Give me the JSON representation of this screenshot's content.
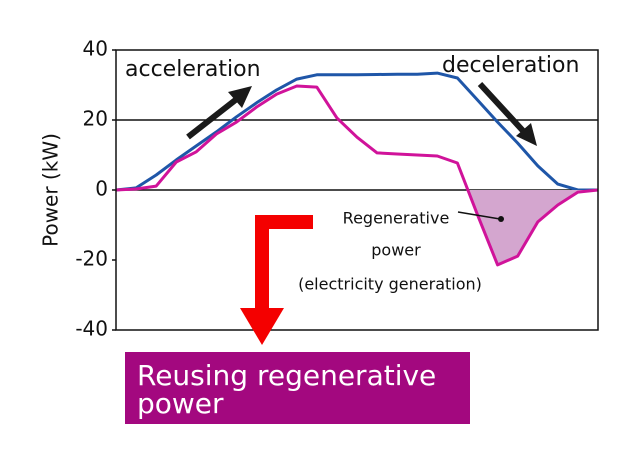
{
  "chart_data": {
    "type": "line",
    "y_label": "Power (kW)",
    "ylim": [
      -40,
      40
    ],
    "yticks": [
      -40,
      -20,
      0,
      20,
      40
    ],
    "series": [
      {
        "color": "#1f56a8",
        "values": [
          0,
          0.6,
          4.3,
          8.6,
          12.6,
          16.6,
          20.9,
          24.9,
          28.6,
          31.7,
          32.9,
          32.9,
          32.9,
          33,
          33.1,
          33.1,
          33.4,
          32,
          25.7,
          19.4,
          13.4,
          6.9,
          1.7,
          0,
          0
        ]
      },
      {
        "color": "#d0139a",
        "fill": "#d4a6cf",
        "values": [
          0,
          0.3,
          1.1,
          8,
          10.9,
          16,
          19.4,
          23.7,
          27.4,
          29.7,
          29.4,
          20.6,
          15.1,
          10.6,
          10.3,
          10,
          9.7,
          7.7,
          -7.1,
          -21.4,
          -18.9,
          -9.1,
          -4.3,
          -0.6,
          0
        ]
      }
    ],
    "annotations": [
      "acceleration",
      "deceleration",
      "Regenerative",
      "power",
      "(electricity generation)"
    ],
    "callout": [
      "Reusing regenerative",
      "power"
    ],
    "callout_color": "#a3087f"
  }
}
